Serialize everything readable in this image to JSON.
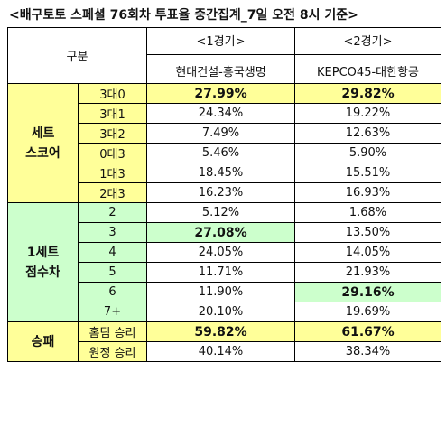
{
  "title": "<배구토토 스페셜 76회차 투표율 중간집계_7일 오전 8시 기준>",
  "header": {
    "gubun": "구분",
    "round1": "<1경기>",
    "round2": "<2경기>",
    "match1": "현대건설-흥국생명",
    "match2": "KEPCO45-대한항공"
  },
  "sections": [
    {
      "category": [
        "세트",
        "스코어"
      ],
      "rows": [
        {
          "label": "3대0",
          "g1": "27.99%",
          "g2": "29.82%",
          "g1_bold": true,
          "g2_bold": true
        },
        {
          "label": "3대1",
          "g1": "24.34%",
          "g2": "19.22%"
        },
        {
          "label": "3대2",
          "g1": "7.49%",
          "g2": "12.63%"
        },
        {
          "label": "0대3",
          "g1": "5.46%",
          "g2": "5.90%"
        },
        {
          "label": "1대3",
          "g1": "18.45%",
          "g2": "15.51%"
        },
        {
          "label": "2대3",
          "g1": "16.23%",
          "g2": "16.93%"
        }
      ]
    },
    {
      "category": [
        "1세트",
        "점수차"
      ],
      "rows": [
        {
          "label": "2",
          "g1": "5.12%",
          "g2": "1.68%"
        },
        {
          "label": "3",
          "g1": "27.08%",
          "g2": "13.50%",
          "g1_bold": true
        },
        {
          "label": "4",
          "g1": "24.05%",
          "g2": "14.05%"
        },
        {
          "label": "5",
          "g1": "11.71%",
          "g2": "21.93%"
        },
        {
          "label": "6",
          "g1": "11.90%",
          "g2": "29.16%",
          "g2_bold": true
        },
        {
          "label": "7+",
          "g1": "20.10%",
          "g2": "19.69%"
        }
      ]
    },
    {
      "category": [
        "승패"
      ],
      "rows": [
        {
          "label": "홈팀 승리",
          "g1": "59.82%",
          "g2": "61.67%",
          "g1_bold": true,
          "g2_bold": true
        },
        {
          "label": "원정 승리",
          "g1": "40.14%",
          "g2": "38.34%"
        }
      ]
    }
  ],
  "colors": {
    "yellow": "#ffff99",
    "green": "#ccffcc",
    "border": "#000000"
  }
}
